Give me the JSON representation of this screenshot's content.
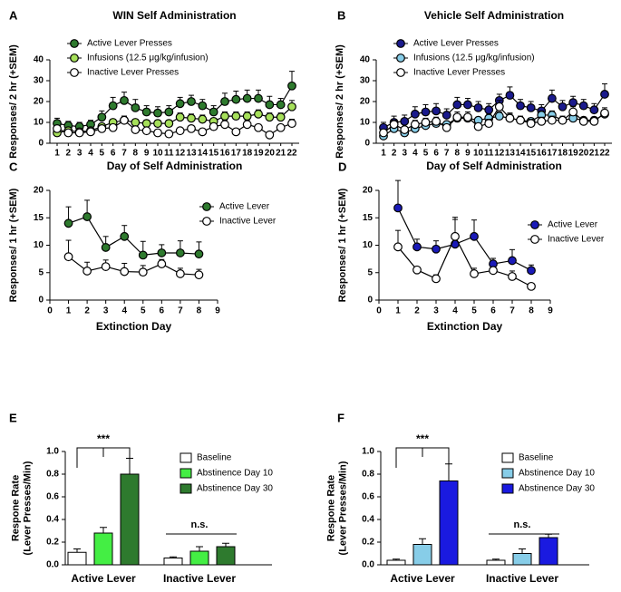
{
  "chart_data": [
    {
      "type": "line",
      "panel": "A",
      "title": "WIN Self Administration",
      "xlabel": "Day of Self Administration",
      "ylabel": "Responses/ 2 hr (+SEM)",
      "categories": [
        "1",
        "2",
        "3",
        "4",
        "5",
        "6",
        "7",
        "8",
        "9",
        "10",
        "11",
        "12",
        "13",
        "14",
        "15",
        "16",
        "17",
        "18",
        "19",
        "20",
        "21",
        "22"
      ],
      "ylim": [
        0,
        40
      ],
      "yticks": [
        0,
        10,
        20,
        30,
        40
      ],
      "series": [
        {
          "name": "Active Lever Presses",
          "color": "#2e7a2e",
          "values": [
            9.5,
            8.5,
            8,
            9,
            12.5,
            18,
            20.5,
            17,
            15,
            14.5,
            15,
            19,
            20,
            18,
            15,
            20,
            21,
            21.5,
            21.5,
            18.5,
            18.5,
            27.5
          ],
          "errors": [
            2.5,
            2,
            2,
            2,
            3,
            4,
            4,
            4,
            3,
            3,
            3,
            3,
            3,
            3,
            3,
            4,
            4,
            4,
            4,
            4,
            3,
            7
          ]
        },
        {
          "name": "Infusions (12.5 μg/kg/infusion)",
          "color": "#a6e05a",
          "values": [
            5,
            6,
            5.5,
            6,
            8,
            10,
            11,
            10,
            9.5,
            9.5,
            9.5,
            12.5,
            12,
            11.5,
            10.5,
            13,
            13,
            13,
            14,
            12.5,
            12.5,
            17.5
          ],
          "errors": [
            1,
            1,
            1,
            1,
            1.5,
            1.5,
            2,
            1.5,
            1.5,
            1.5,
            1.5,
            2,
            2,
            2,
            1.5,
            2,
            2,
            2,
            2,
            2,
            2,
            3
          ]
        },
        {
          "name": "Inactive Lever Presses",
          "color": "#ffffff",
          "values": [
            7,
            5,
            5,
            5.5,
            7,
            7.5,
            11,
            6.5,
            6,
            5,
            4.5,
            6,
            7,
            5.5,
            8,
            9,
            5.5,
            9,
            7.5,
            4,
            7.5,
            9.5
          ],
          "errors": [
            1.5,
            1,
            1,
            1,
            1.5,
            1.5,
            2,
            1.5,
            1,
            1,
            1,
            1,
            1.5,
            1,
            1.5,
            2,
            1,
            2,
            1.5,
            1,
            1.5,
            2
          ]
        }
      ]
    },
    {
      "type": "line",
      "panel": "B",
      "title": "Vehicle Self Administration",
      "xlabel": "Day of Self Administration",
      "ylabel": "Responses/ 2 hr (+SEM)",
      "categories": [
        "1",
        "2",
        "3",
        "4",
        "5",
        "6",
        "7",
        "8",
        "9",
        "10",
        "11",
        "12",
        "13",
        "14",
        "15",
        "16",
        "17",
        "18",
        "19",
        "20",
        "21",
        "22"
      ],
      "ylim": [
        0,
        40
      ],
      "yticks": [
        0,
        10,
        20,
        30,
        40
      ],
      "series": [
        {
          "name": "Active Lever Presses",
          "color": "#1a1a8c",
          "values": [
            7.5,
            10,
            10.5,
            14,
            15,
            15.5,
            13.5,
            18.5,
            18.5,
            17,
            16,
            20.5,
            23,
            18,
            17,
            15.5,
            21.5,
            17.5,
            19.5,
            18,
            16,
            23.5
          ],
          "errors": [
            2.5,
            3,
            3,
            3.5,
            3.5,
            3.5,
            3,
            3.5,
            3,
            3,
            3,
            3,
            4,
            3,
            3,
            3,
            4,
            3,
            3,
            3,
            3,
            5
          ]
        },
        {
          "name": "Infusions (12.5 μg/kg/infusion)",
          "color": "#87cde8",
          "values": [
            3.5,
            7,
            5,
            7,
            8.5,
            9.5,
            9,
            12,
            12,
            11,
            12,
            13,
            12,
            11,
            10.5,
            13.5,
            13.5,
            11,
            12,
            11,
            11,
            14
          ],
          "errors": [
            1,
            1.5,
            1,
            1.5,
            1.5,
            1.5,
            1.5,
            2,
            2,
            1.5,
            2,
            2,
            2,
            1.5,
            1.5,
            2,
            2,
            1.5,
            2,
            1.5,
            1.5,
            2
          ]
        },
        {
          "name": "Inactive Lever Presses",
          "color": "#ffffff",
          "values": [
            5,
            9,
            6.5,
            9,
            10,
            10.5,
            7.5,
            12.5,
            12.5,
            8,
            9.5,
            17.5,
            12,
            11,
            9.5,
            10.5,
            11,
            11,
            15,
            10.5,
            10.5,
            14.5
          ],
          "errors": [
            1.5,
            2,
            1.5,
            2,
            2,
            2,
            1.5,
            2.5,
            2.5,
            1.5,
            2,
            3,
            2.5,
            2,
            2,
            2,
            2,
            2,
            2.5,
            2,
            2,
            2.5
          ]
        }
      ]
    },
    {
      "type": "line",
      "panel": "C",
      "xlabel": "Extinction Day",
      "ylabel": "Responses/ 1 hr (+SEM)",
      "x": [
        1,
        2,
        3,
        4,
        5,
        6,
        7,
        8
      ],
      "xlim": [
        0,
        9
      ],
      "xticks": [
        0,
        1,
        2,
        3,
        4,
        5,
        6,
        7,
        8,
        9
      ],
      "ylim": [
        0,
        20
      ],
      "yticks": [
        0,
        5,
        10,
        15,
        20
      ],
      "series": [
        {
          "name": "Active Lever",
          "color": "#2e7a2e",
          "values": [
            14,
            15.2,
            9.6,
            11.6,
            8.2,
            8.6,
            8.6,
            8.4
          ],
          "errors": [
            3,
            3,
            2,
            2,
            2.5,
            1.5,
            2.2,
            2.2
          ]
        },
        {
          "name": "Inactive Lever",
          "color": "#ffffff",
          "values": [
            7.9,
            5.3,
            6.1,
            5.2,
            5.1,
            6.6,
            4.8,
            4.6
          ],
          "errors": [
            3,
            1.6,
            1.2,
            1.5,
            1.2,
            0.8,
            1,
            1
          ]
        }
      ]
    },
    {
      "type": "line",
      "panel": "D",
      "xlabel": "Extinction Day",
      "ylabel": "Responses/ 1 hr (+SEM)",
      "x": [
        1,
        2,
        3,
        4,
        5,
        6,
        7,
        8
      ],
      "xlim": [
        0,
        9
      ],
      "xticks": [
        0,
        1,
        2,
        3,
        4,
        5,
        6,
        7,
        8,
        9
      ],
      "ylim": [
        0,
        20
      ],
      "yticks": [
        0,
        5,
        10,
        15,
        20
      ],
      "series": [
        {
          "name": "Active Lever",
          "color": "#1a1ab8",
          "values": [
            16.8,
            9.7,
            9.3,
            10.2,
            11.6,
            6.6,
            7.2,
            5.4
          ],
          "errors": [
            5,
            1.4,
            1.5,
            4.5,
            3,
            1,
            2,
            1
          ]
        },
        {
          "name": "Inactive Lever",
          "color": "#ffffff",
          "values": [
            9.7,
            5.5,
            3.9,
            11.6,
            4.8,
            5.4,
            4.3,
            2.5
          ],
          "errors": [
            3,
            0.5,
            0.7,
            3.5,
            1,
            0.5,
            1,
            0.5
          ]
        }
      ]
    },
    {
      "type": "bar",
      "panel": "E",
      "ylabel": [
        "Respone Rate",
        "(Lever Presses/Min)"
      ],
      "categories": [
        "Active Lever",
        "Inactive Lever"
      ],
      "ylim": [
        0,
        1
      ],
      "yticks": [
        {
          "value": 0,
          "label": "0.0"
        },
        0.2,
        0.4,
        0.6,
        0.8,
        {
          "value": 1,
          "label": "1.0"
        }
      ],
      "annotations": [
        "***",
        "n.s."
      ],
      "series": [
        {
          "name": "Baseline",
          "color": "#ffffff",
          "values": [
            0.11,
            0.06
          ],
          "errors": [
            0.03,
            0.01
          ]
        },
        {
          "name": "Abstinence Day 10",
          "color": "#44ee44",
          "values": [
            0.28,
            0.12
          ],
          "errors": [
            0.05,
            0.04
          ]
        },
        {
          "name": "Abstinence Day 30",
          "color": "#2e7a2e",
          "values": [
            0.8,
            0.16
          ],
          "errors": [
            0.14,
            0.03
          ]
        }
      ]
    },
    {
      "type": "bar",
      "panel": "F",
      "ylabel": [
        "Respone Rate",
        "(Lever Presses/Min)"
      ],
      "categories": [
        "Active Lever",
        "Inactive Lever"
      ],
      "ylim": [
        0,
        1
      ],
      "yticks": [
        {
          "value": 0,
          "label": "0.0"
        },
        0.2,
        0.4,
        0.6,
        0.8,
        {
          "value": 1,
          "label": "1.0"
        }
      ],
      "annotations": [
        "***",
        "n.s."
      ],
      "series": [
        {
          "name": "Baseline",
          "color": "#ffffff",
          "values": [
            0.04,
            0.04
          ],
          "errors": [
            0.01,
            0.01
          ]
        },
        {
          "name": "Abstinence Day 10",
          "color": "#87cde8",
          "values": [
            0.18,
            0.1
          ],
          "errors": [
            0.05,
            0.04
          ]
        },
        {
          "name": "Abstinence Day 30",
          "color": "#1a1ae0",
          "values": [
            0.74,
            0.24
          ],
          "errors": [
            0.15,
            0.03
          ]
        }
      ]
    }
  ]
}
